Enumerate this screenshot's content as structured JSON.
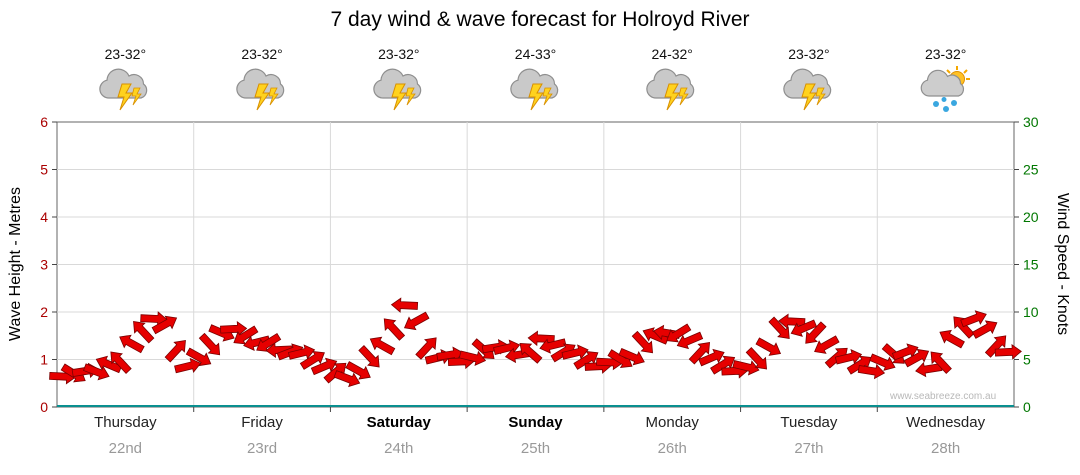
{
  "title": "7 day wind & wave forecast for Holroyd River",
  "watermark": "www.seabreeze.com.au",
  "colors": {
    "arrow": "#e60000",
    "arrow_outline": "#7a0000",
    "grid": "#d9d9d9",
    "frame": "#666666",
    "baseline": "#0a8f8f",
    "left_axis_numbers": "#aa0000",
    "right_axis_numbers": "#007700",
    "date_text": "#999999"
  },
  "axes": {
    "left_label": "Wave Height - Metres",
    "right_label": "Wind Speed - Knots",
    "left_ticks": [
      "0",
      "1",
      "2",
      "3",
      "4",
      "5",
      "6"
    ],
    "right_ticks": [
      "0",
      "5",
      "10",
      "15",
      "20",
      "25",
      "30"
    ],
    "left_range": [
      0,
      6
    ],
    "right_range": [
      0,
      30
    ]
  },
  "days": [
    {
      "name": "Thursday",
      "date": "22nd",
      "temp": "23-32°",
      "icon": "storm-icon",
      "weekend": false
    },
    {
      "name": "Friday",
      "date": "23rd",
      "temp": "23-32°",
      "icon": "storm-icon",
      "weekend": false
    },
    {
      "name": "Saturday",
      "date": "24th",
      "temp": "23-32°",
      "icon": "storm-icon",
      "weekend": true
    },
    {
      "name": "Sunday",
      "date": "25th",
      "temp": "24-33°",
      "icon": "storm-icon",
      "weekend": true
    },
    {
      "name": "Monday",
      "date": "26th",
      "temp": "24-32°",
      "icon": "storm-icon",
      "weekend": false
    },
    {
      "name": "Tuesday",
      "date": "27th",
      "temp": "23-32°",
      "icon": "storm-icon",
      "weekend": false
    },
    {
      "name": "Wednesday",
      "date": "28th",
      "temp": "23-32°",
      "icon": "sun-shower-icon",
      "weekend": false
    }
  ],
  "chart_data": {
    "type": "line",
    "title": "7 day wind & wave forecast for Holroyd River",
    "categories": [
      "Thursday 22nd",
      "Friday 23rd",
      "Saturday 24th",
      "Sunday 25th",
      "Monday 26th",
      "Tuesday 27th",
      "Wednesday 28th"
    ],
    "ylabel_left": "Wave Height - Metres",
    "ylabel_right": "Wind Speed - Knots",
    "ylim_left": [
      0,
      6
    ],
    "ylim_right": [
      0,
      30
    ],
    "grid": true,
    "marker": "wind-arrow",
    "series": [
      {
        "name": "Wind Speed (knots)",
        "points_per_day": 12,
        "values": [
          3,
          3.5,
          4,
          3.5,
          4.5,
          5,
          6.5,
          8,
          9.5,
          8.5,
          6,
          4.5,
          5,
          6.5,
          8,
          8,
          7.5,
          7,
          6.5,
          6,
          6,
          5.5,
          5,
          4.5,
          3.5,
          3,
          4,
          5,
          6.5,
          8.5,
          10.5,
          9,
          6.5,
          5,
          5.5,
          5,
          5,
          6,
          6.5,
          6,
          5.5,
          6,
          7,
          6.5,
          6,
          5.5,
          5,
          4.5,
          4.5,
          5,
          5.5,
          6.5,
          7.5,
          8,
          7.5,
          7,
          6,
          5,
          4.5,
          4,
          4,
          5,
          6.5,
          8,
          9,
          8.5,
          7.5,
          6.5,
          5.5,
          5,
          4.5,
          4,
          4.5,
          5.5,
          6,
          5,
          4,
          5,
          7,
          8.5,
          9.5,
          8,
          6.5,
          6
        ]
      }
    ]
  }
}
